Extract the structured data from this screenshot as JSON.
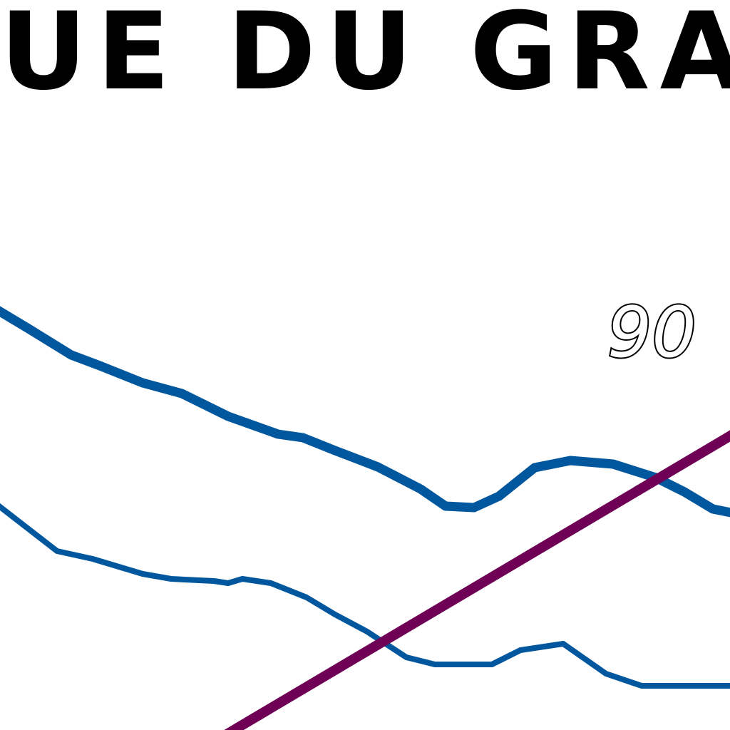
{
  "map": {
    "place_label": "UE DU GRAND",
    "contour_label": "90",
    "colors": {
      "river": "#00579d",
      "road": "#6e0055",
      "label": "#000000",
      "background": "#ffffff"
    }
  }
}
